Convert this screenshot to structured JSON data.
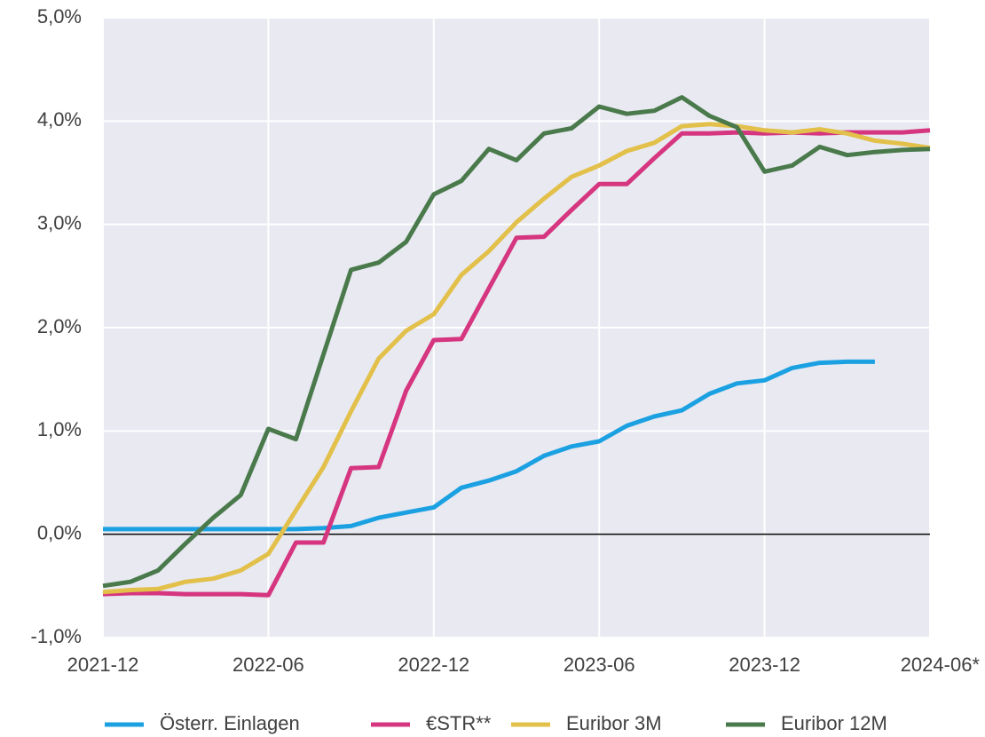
{
  "chart_data": {
    "type": "line",
    "categories": [
      "2021-12",
      null,
      null,
      null,
      null,
      null,
      "2022-06",
      null,
      null,
      null,
      null,
      null,
      "2022-12",
      null,
      null,
      null,
      null,
      null,
      "2023-06",
      null,
      null,
      null,
      null,
      null,
      "2023-12",
      null,
      null,
      null,
      null,
      null,
      "2024-06*"
    ],
    "ylim": [
      -1,
      5
    ],
    "yticks": [
      {
        "value": -1,
        "label": "-1,0%"
      },
      {
        "value": 0,
        "label": "0,0%"
      },
      {
        "value": 1,
        "label": "1,0%"
      },
      {
        "value": 2,
        "label": "2,0%"
      },
      {
        "value": 3,
        "label": "3,0%"
      },
      {
        "value": 4,
        "label": "4,0%"
      },
      {
        "value": 5,
        "label": "5,0%"
      }
    ],
    "grid": true,
    "legend": "bottom",
    "series": [
      {
        "name": "Österr. Einlagen",
        "color": "#1ba1e2",
        "values": [
          0.05,
          0.05,
          0.05,
          0.05,
          0.05,
          0.05,
          0.05,
          0.05,
          0.06,
          0.08,
          0.16,
          0.21,
          0.26,
          0.45,
          0.52,
          0.61,
          0.76,
          0.85,
          0.9,
          1.05,
          1.14,
          1.2,
          1.36,
          1.46,
          1.49,
          1.61,
          1.66,
          1.67,
          1.67,
          null,
          null
        ]
      },
      {
        "name": "€STR**",
        "color": "#d6357f",
        "values": [
          -0.58,
          -0.57,
          -0.57,
          -0.58,
          -0.58,
          -0.58,
          -0.59,
          -0.08,
          -0.08,
          0.64,
          0.65,
          1.39,
          1.88,
          1.89,
          2.38,
          2.87,
          2.88,
          3.14,
          3.39,
          3.39,
          3.64,
          3.88,
          3.88,
          3.89,
          3.88,
          3.89,
          3.88,
          3.89,
          3.89,
          3.89,
          3.91
        ]
      },
      {
        "name": "Euribor 3M",
        "color": "#e2c04a",
        "values": [
          -0.56,
          -0.54,
          -0.53,
          -0.46,
          -0.43,
          -0.35,
          -0.19,
          0.23,
          0.65,
          1.19,
          1.7,
          1.97,
          2.13,
          2.51,
          2.74,
          3.02,
          3.25,
          3.46,
          3.57,
          3.71,
          3.79,
          3.95,
          3.97,
          3.95,
          3.91,
          3.89,
          3.92,
          3.88,
          3.81,
          3.78,
          3.74
        ]
      },
      {
        "name": "Euribor 12M",
        "color": "#4a7a4c",
        "values": [
          -0.5,
          -0.46,
          -0.35,
          -0.09,
          0.16,
          0.38,
          1.02,
          0.92,
          1.74,
          2.56,
          2.63,
          2.83,
          3.29,
          3.42,
          3.73,
          3.62,
          3.88,
          3.93,
          4.14,
          4.07,
          4.1,
          4.23,
          4.05,
          3.94,
          3.51,
          3.57,
          3.75,
          3.67,
          3.7,
          3.72,
          3.73
        ]
      }
    ]
  }
}
